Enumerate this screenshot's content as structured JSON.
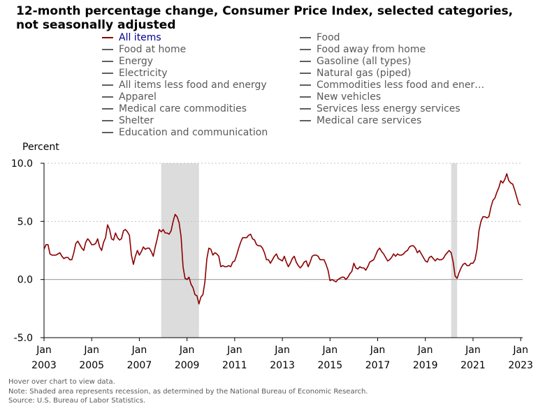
{
  "title": "12-month percentage change, Consumer Price Index, selected categories, not seasonally adjusted",
  "legend": [
    {
      "label": "All items",
      "active": true
    },
    {
      "label": "Food",
      "active": false
    },
    {
      "label": "Food at home",
      "active": false
    },
    {
      "label": "Food away from home",
      "active": false
    },
    {
      "label": "Energy",
      "active": false
    },
    {
      "label": "Gasoline (all types)",
      "active": false
    },
    {
      "label": "Electricity",
      "active": false
    },
    {
      "label": "Natural gas (piped)",
      "active": false
    },
    {
      "label": "All items less food and energy",
      "active": false
    },
    {
      "label": "Commodities less food and ener…",
      "active": false
    },
    {
      "label": "Apparel",
      "active": false
    },
    {
      "label": "New vehicles",
      "active": false
    },
    {
      "label": "Medical care commodities",
      "active": false
    },
    {
      "label": "Services less energy services",
      "active": false
    },
    {
      "label": "Shelter",
      "active": false
    },
    {
      "label": "Medical care services",
      "active": false
    },
    {
      "label": "Education and communication",
      "active": false
    }
  ],
  "notes": [
    "Hover over chart to view data.",
    "Note: Shaded area represents recession, as determined by the National Bureau of Economic Research.",
    "Source: U.S. Bureau of Labor Statistics."
  ],
  "colors": {
    "series_active": "#8b0000",
    "legend_active_text": "#00008b",
    "legend_inactive": "#5f5f5f",
    "recession_shade": "#dcdcdc",
    "gridline": "#c0c0c0"
  },
  "chart_data": {
    "type": "line",
    "ylabel": "Percent",
    "ylim": [
      -5.0,
      10.0
    ],
    "yticks": [
      "10.0",
      "5.0",
      "0.0",
      "-5.0"
    ],
    "ytick_values": [
      10,
      5,
      0,
      -5
    ],
    "xlim": [
      "2003-01",
      "2023-02"
    ],
    "xticks": [
      {
        "date": "2003-01",
        "month": "Jan",
        "year": "2003"
      },
      {
        "date": "2005-01",
        "month": "Jan",
        "year": "2005"
      },
      {
        "date": "2007-01",
        "month": "Jan",
        "year": "2007"
      },
      {
        "date": "2009-01",
        "month": "Jan",
        "year": "2009"
      },
      {
        "date": "2011-01",
        "month": "Jan",
        "year": "2011"
      },
      {
        "date": "2013-01",
        "month": "Jan",
        "year": "2013"
      },
      {
        "date": "2015-01",
        "month": "Jan",
        "year": "2015"
      },
      {
        "date": "2017-01",
        "month": "Jan",
        "year": "2017"
      },
      {
        "date": "2019-01",
        "month": "Jan",
        "year": "2019"
      },
      {
        "date": "2021-01",
        "month": "Jan",
        "year": "2021"
      },
      {
        "date": "2023-01",
        "month": "Jan",
        "year": "2023"
      }
    ],
    "grid": "horizontal-dotted",
    "recessions": [
      {
        "start": "2007-12",
        "end": "2009-06"
      },
      {
        "start": "2020-02",
        "end": "2020-04"
      }
    ],
    "x_start": "2003-01",
    "x_frequency": "monthly",
    "series": [
      {
        "name": "All items",
        "values": [
          2.6,
          3.0,
          3.0,
          2.2,
          2.1,
          2.1,
          2.1,
          2.2,
          2.3,
          2.0,
          1.8,
          1.9,
          1.9,
          1.7,
          1.7,
          2.3,
          3.1,
          3.3,
          3.0,
          2.7,
          2.5,
          3.2,
          3.5,
          3.3,
          3.0,
          3.0,
          3.1,
          3.5,
          2.8,
          2.5,
          3.2,
          3.6,
          4.7,
          4.3,
          3.5,
          3.4,
          4.0,
          3.6,
          3.4,
          3.5,
          4.2,
          4.3,
          4.1,
          3.8,
          2.1,
          1.3,
          2.0,
          2.5,
          2.1,
          2.4,
          2.8,
          2.6,
          2.7,
          2.7,
          2.4,
          2.0,
          2.8,
          3.5,
          4.3,
          4.1,
          4.3,
          4.0,
          4.0,
          3.9,
          4.2,
          5.0,
          5.6,
          5.4,
          4.9,
          3.7,
          1.1,
          0.1,
          0.0,
          0.2,
          -0.4,
          -0.7,
          -1.3,
          -1.4,
          -2.1,
          -1.5,
          -1.3,
          -0.2,
          1.8,
          2.7,
          2.6,
          2.1,
          2.3,
          2.2,
          2.0,
          1.1,
          1.2,
          1.1,
          1.1,
          1.2,
          1.1,
          1.5,
          1.6,
          2.1,
          2.7,
          3.2,
          3.6,
          3.6,
          3.6,
          3.8,
          3.9,
          3.5,
          3.4,
          3.0,
          2.9,
          2.9,
          2.7,
          2.3,
          1.7,
          1.7,
          1.4,
          1.7,
          2.0,
          2.2,
          1.8,
          1.7,
          1.6,
          2.0,
          1.5,
          1.1,
          1.4,
          1.8,
          2.0,
          1.5,
          1.2,
          1.0,
          1.2,
          1.5,
          1.6,
          1.1,
          1.5,
          2.0,
          2.1,
          2.1,
          2.0,
          1.7,
          1.7,
          1.7,
          1.3,
          0.8,
          -0.1,
          0.0,
          -0.1,
          -0.2,
          0.0,
          0.1,
          0.2,
          0.2,
          0.0,
          0.2,
          0.5,
          0.7,
          1.4,
          1.0,
          0.9,
          1.1,
          1.0,
          1.0,
          0.8,
          1.1,
          1.5,
          1.6,
          1.7,
          2.1,
          2.5,
          2.7,
          2.4,
          2.2,
          1.9,
          1.6,
          1.7,
          1.9,
          2.2,
          2.0,
          2.2,
          2.1,
          2.1,
          2.2,
          2.4,
          2.5,
          2.8,
          2.9,
          2.9,
          2.7,
          2.3,
          2.5,
          2.2,
          1.9,
          1.6,
          1.5,
          1.9,
          2.0,
          1.8,
          1.6,
          1.8,
          1.7,
          1.7,
          1.8,
          2.1,
          2.3,
          2.5,
          2.3,
          1.5,
          0.3,
          0.1,
          0.6,
          1.0,
          1.3,
          1.4,
          1.2,
          1.2,
          1.4,
          1.4,
          1.7,
          2.6,
          4.2,
          5.0,
          5.4,
          5.4,
          5.3,
          5.4,
          6.2,
          6.8,
          7.0,
          7.5,
          7.9,
          8.5,
          8.3,
          8.6,
          9.1,
          8.5,
          8.3,
          8.2,
          7.7,
          7.1,
          6.5,
          6.4
        ]
      }
    ]
  }
}
